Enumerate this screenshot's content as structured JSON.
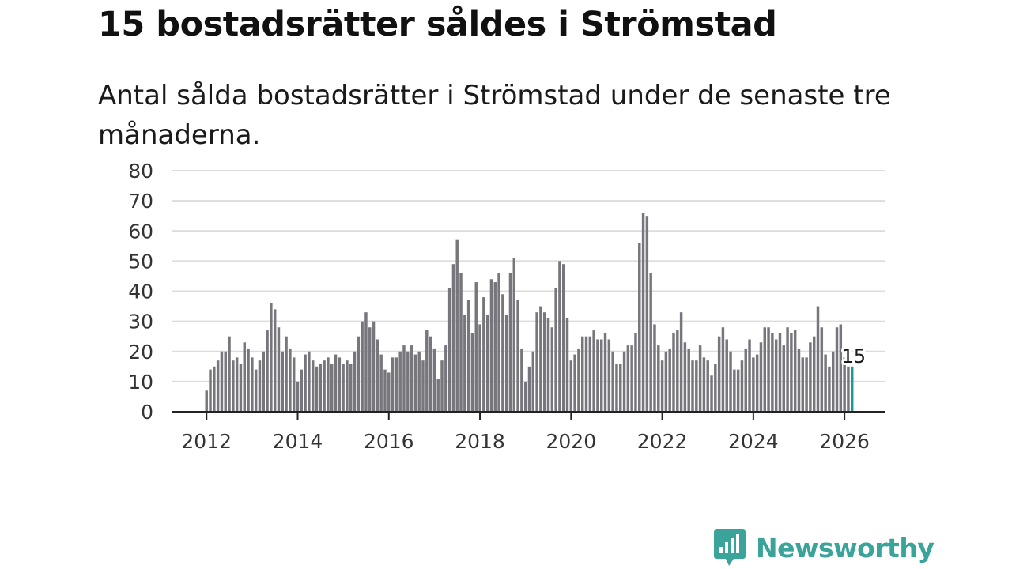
{
  "header": {
    "title": "15 bostadsrätter såldes i Strömstad",
    "subtitle": "Antal sålda bostadsrätter i Strömstad under de senaste tre månaderna."
  },
  "brand": {
    "name": "Newsworthy"
  },
  "colors": {
    "bar": "#76767c",
    "highlight": "#1a9b9b",
    "grid": "#dcdcdc",
    "axis": "#222222",
    "brand": "#3aa39a"
  },
  "chart_data": {
    "type": "bar",
    "title": "Antal sålda bostadsrätter i Strömstad",
    "xlabel": "",
    "ylabel": "",
    "start_year": 2012,
    "start_month": 1,
    "xlim": [
      2011.25,
      2026.9
    ],
    "ylim": [
      0,
      80
    ],
    "yticks": [
      0,
      10,
      20,
      30,
      40,
      50,
      60,
      70,
      80
    ],
    "xticks": [
      2012,
      2014,
      2016,
      2018,
      2020,
      2022,
      2024,
      2026
    ],
    "grid": true,
    "values": [
      7,
      14,
      15,
      17,
      20,
      20,
      25,
      17,
      18,
      16,
      23,
      21,
      18,
      14,
      17,
      20,
      27,
      36,
      34,
      28,
      20,
      25,
      21,
      18,
      10,
      14,
      19,
      20,
      17,
      15,
      16,
      17,
      18,
      16,
      19,
      18,
      16,
      17,
      16,
      20,
      25,
      30,
      33,
      28,
      30,
      24,
      19,
      14,
      13,
      18,
      18,
      20,
      22,
      20,
      22,
      19,
      20,
      17,
      27,
      25,
      21,
      11,
      17,
      22,
      41,
      49,
      57,
      46,
      32,
      37,
      26,
      43,
      29,
      38,
      32,
      44,
      43,
      46,
      39,
      32,
      46,
      51,
      37,
      21,
      10,
      15,
      20,
      33,
      35,
      33,
      31,
      28,
      41,
      50,
      49,
      31,
      17,
      19,
      21,
      25,
      25,
      25,
      27,
      24,
      24,
      26,
      24,
      20,
      16,
      16,
      20,
      22,
      22,
      26,
      56,
      66,
      65,
      46,
      29,
      22,
      17,
      20,
      21,
      26,
      27,
      33,
      23,
      21,
      17,
      17,
      22,
      18,
      17,
      12,
      16,
      25,
      28,
      24,
      20,
      14,
      14,
      17,
      21,
      24,
      18,
      19,
      23,
      28,
      28,
      26,
      24,
      26,
      22,
      28,
      26,
      27,
      21,
      18,
      18,
      23,
      25,
      35,
      28,
      19,
      15,
      20,
      28,
      29,
      18,
      15,
      15
    ],
    "highlight_last": true,
    "annotation": {
      "label": "15",
      "value": 15
    }
  }
}
